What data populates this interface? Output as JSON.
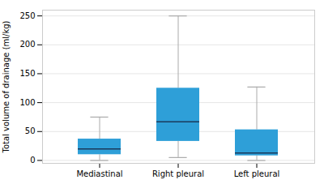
{
  "chart_data": {
    "type": "box",
    "categories": [
      "Mediastinal",
      "Right pleural",
      "Left pleural"
    ],
    "box_stats": [
      {
        "whislo": 0,
        "q1": 10,
        "med": 20,
        "q3": 37,
        "whishi": 75
      },
      {
        "whislo": 5,
        "q1": 33,
        "med": 67,
        "q3": 125,
        "whishi": 250
      },
      {
        "whislo": 0,
        "q1": 8,
        "med": 13,
        "q3": 53,
        "whishi": 127
      }
    ],
    "color": "#2e9fd8",
    "median_color": "#1a3a5c",
    "whisker_color": "#aaaaaa",
    "ylabel": "Total volume of drainage (ml/kg)",
    "ylim": [
      -5,
      260
    ],
    "yticks": [
      0,
      50,
      100,
      150,
      200,
      250
    ],
    "grid": true
  }
}
